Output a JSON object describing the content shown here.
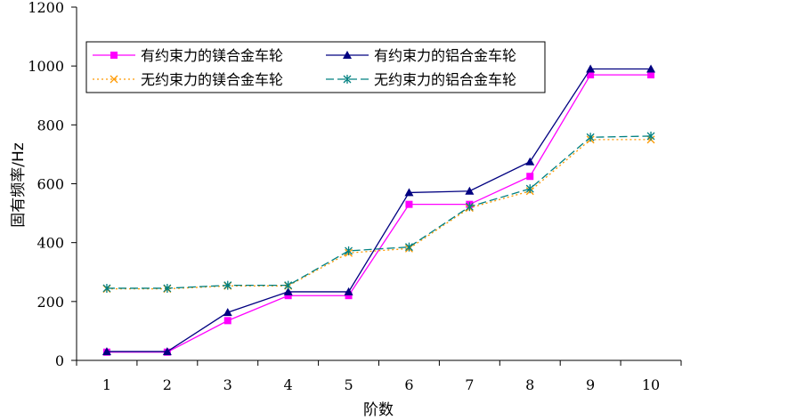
{
  "chart_data": {
    "type": "line",
    "xlabel": "阶数",
    "ylabel": "固有频率/Hz",
    "x": [
      1,
      2,
      3,
      4,
      5,
      6,
      7,
      8,
      9,
      10
    ],
    "xlim": [
      0.5,
      10.5
    ],
    "ylim": [
      0,
      1200
    ],
    "yticks": [
      0,
      200,
      400,
      600,
      800,
      1000,
      1200
    ],
    "grid": false,
    "legend_position": "top-left",
    "series": [
      {
        "name": "有约束力的镁合金车轮",
        "values": [
          28,
          28,
          135,
          220,
          220,
          530,
          530,
          625,
          970,
          970
        ],
        "color": "#ff00ff",
        "marker": "square",
        "dash": "solid"
      },
      {
        "name": "有约束力的铝合金车轮",
        "values": [
          30,
          30,
          163,
          233,
          233,
          570,
          575,
          675,
          990,
          990
        ],
        "color": "#000080",
        "marker": "triangle",
        "dash": "solid"
      },
      {
        "name": "无约束力的镁合金车轮",
        "values": [
          243,
          243,
          253,
          253,
          365,
          380,
          518,
          575,
          750,
          750
        ],
        "color": "#ff9900",
        "marker": "x",
        "dash": "dotted"
      },
      {
        "name": "无约束力的铝合金车轮",
        "values": [
          245,
          245,
          255,
          255,
          372,
          385,
          522,
          583,
          758,
          762
        ],
        "color": "#008080",
        "marker": "asterisk",
        "dash": "dashed"
      }
    ]
  }
}
